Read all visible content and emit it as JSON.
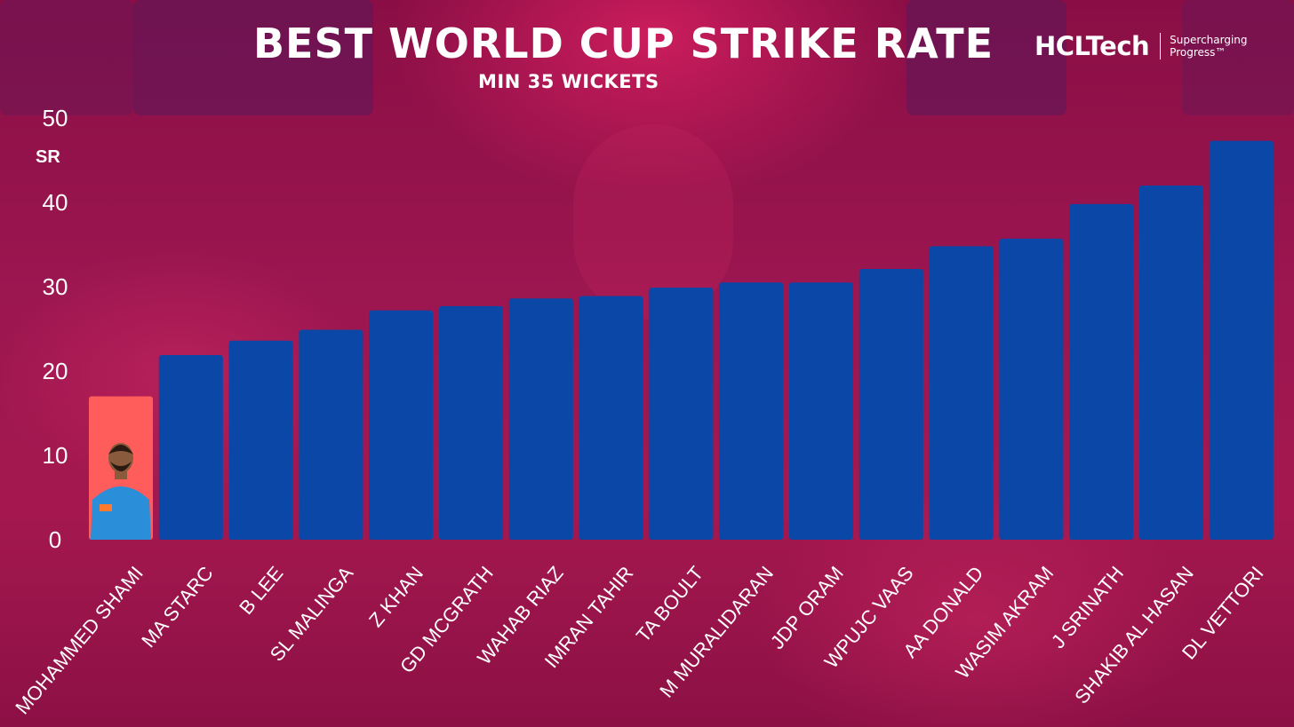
{
  "title": "BEST WORLD CUP STRIKE RATE",
  "subtitle": "MIN 35 WICKETS",
  "logo": {
    "wordmark": "HCLTech",
    "tagline_line1": "Supercharging",
    "tagline_line2": "Progress™"
  },
  "colors": {
    "bar": "#0a47a6",
    "highlight_bar": "#ff5c5c",
    "text": "#ffffff"
  },
  "chart_data": {
    "type": "bar",
    "title": "BEST WORLD CUP STRIKE RATE",
    "subtitle": "MIN 35 WICKETS",
    "xlabel": "",
    "ylabel": "SR",
    "ylim": [
      0,
      50
    ],
    "yticks": [
      0,
      10,
      20,
      30,
      40,
      50
    ],
    "grid": false,
    "highlight_index": 0,
    "categories": [
      "MOHAMMED SHAMI",
      "MA STARC",
      "B LEE",
      "SL MALINGA",
      "Z KHAN",
      "GD MCGRATH",
      "WAHAB RIAZ",
      "IMRAN TAHIR",
      "TA BOULT",
      "M MURALIDARAN",
      "JDP ORAM",
      "WPUJC VAAS",
      "AA DONALD",
      "WASIM AKRAM",
      "J SRINATH",
      "SHAKIB AL HASAN",
      "DL VETTORI"
    ],
    "values": [
      17.0,
      21.9,
      23.6,
      24.9,
      27.2,
      27.7,
      28.6,
      28.9,
      29.9,
      30.5,
      30.5,
      32.1,
      34.8,
      35.7,
      39.8,
      42.0,
      47.3
    ]
  }
}
